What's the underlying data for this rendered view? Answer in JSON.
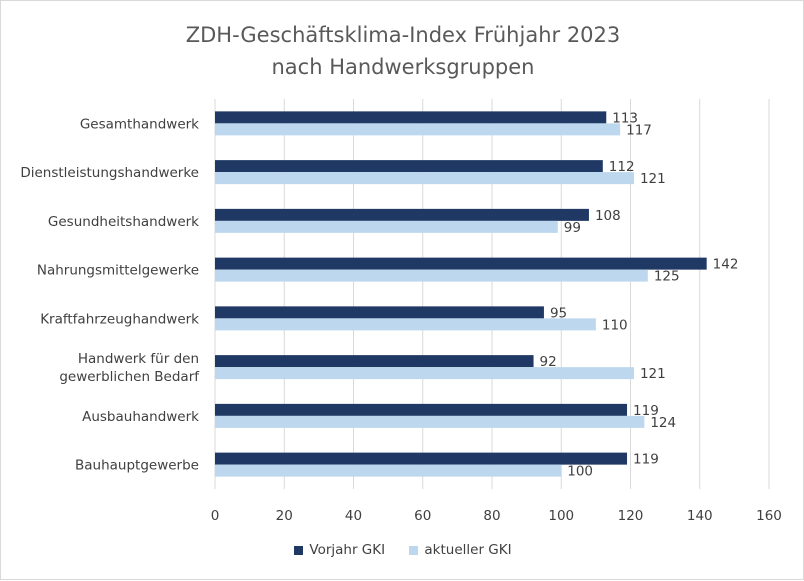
{
  "chart_data": {
    "type": "bar",
    "orientation": "horizontal",
    "title": "ZDH-Geschäftsklima-Index Frühjahr 2023",
    "subtitle": "nach Handwerksgruppen",
    "categories": [
      [
        "Gesamthandwerk"
      ],
      [
        "Dienstleistungshandwerke"
      ],
      [
        "Gesundheitshandwerk"
      ],
      [
        "Nahrungsmittelgewerke"
      ],
      [
        "Kraftfahrzeughandwerk"
      ],
      [
        "Handwerk für den",
        "gewerblichen Bedarf"
      ],
      [
        "Ausbauhandwerk"
      ],
      [
        "Bauhauptgewerbe"
      ]
    ],
    "series": [
      {
        "name": "Vorjahr GKI",
        "color": "#1f3864",
        "values": [
          113,
          112,
          108,
          142,
          95,
          92,
          119,
          119
        ]
      },
      {
        "name": "aktueller GKI",
        "color": "#bdd7ee",
        "values": [
          117,
          121,
          99,
          125,
          110,
          121,
          124,
          100
        ]
      }
    ],
    "xlim": [
      0,
      160
    ],
    "xticks": [
      0,
      20,
      40,
      60,
      80,
      100,
      120,
      140,
      160
    ],
    "grid": true,
    "legend": "bottom",
    "gridline_color": "#d9d9d9"
  }
}
